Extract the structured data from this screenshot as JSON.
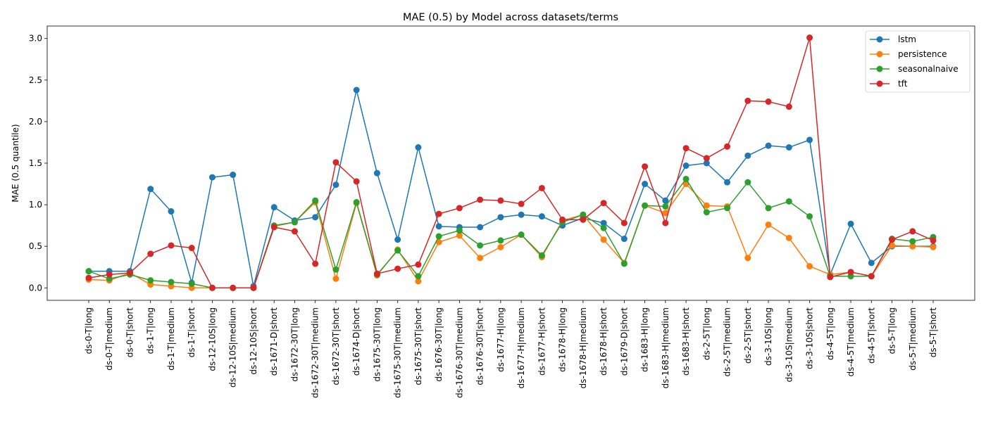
{
  "chart_data": {
    "type": "line",
    "title": "MAE (0.5) by Model across datasets/terms",
    "xlabel": "",
    "ylabel": "MAE (0.5 quantile)",
    "ylim": [
      -0.15,
      3.15
    ],
    "yticks": [
      "0.0",
      "0.5",
      "1.0",
      "1.5",
      "2.0",
      "2.5",
      "3.0"
    ],
    "grid": false,
    "legend_position": "top-right",
    "categories": [
      "ds-0-T|long",
      "ds-0-T|medium",
      "ds-0-T|short",
      "ds-1-T|long",
      "ds-1-T|medium",
      "ds-1-T|short",
      "ds-12-10S|long",
      "ds-12-10S|medium",
      "ds-12-10S|short",
      "ds-1671-D|short",
      "ds-1672-30T|long",
      "ds-1672-30T|medium",
      "ds-1672-30T|short",
      "ds-1674-D|short",
      "ds-1675-30T|long",
      "ds-1675-30T|medium",
      "ds-1675-30T|short",
      "ds-1676-30T|long",
      "ds-1676-30T|medium",
      "ds-1676-30T|short",
      "ds-1677-H|long",
      "ds-1677-H|medium",
      "ds-1677-H|short",
      "ds-1678-H|long",
      "ds-1678-H|medium",
      "ds-1678-H|short",
      "ds-1679-D|short",
      "ds-1683-H|long",
      "ds-1683-H|medium",
      "ds-1683-H|short",
      "ds-2-5T|long",
      "ds-2-5T|medium",
      "ds-2-5T|short",
      "ds-3-10S|long",
      "ds-3-10S|medium",
      "ds-3-10S|short",
      "ds-4-5T|long",
      "ds-4-5T|medium",
      "ds-4-5T|short",
      "ds-5-T|long",
      "ds-5-T|medium",
      "ds-5-T|short"
    ],
    "series": [
      {
        "name": "lstm",
        "color": "#1f77b4",
        "values": [
          0.2,
          0.2,
          0.2,
          1.19,
          0.92,
          0.06,
          1.33,
          1.36,
          0.02,
          0.97,
          0.81,
          0.85,
          1.24,
          2.38,
          1.38,
          0.58,
          1.69,
          0.74,
          0.73,
          0.73,
          0.85,
          0.88,
          0.86,
          0.75,
          0.84,
          0.78,
          0.59,
          1.25,
          1.05,
          1.47,
          1.5,
          1.27,
          1.59,
          1.71,
          1.69,
          1.78,
          0.16,
          0.77,
          0.3,
          0.5,
          0.5,
          0.5
        ]
      },
      {
        "name": "persistence",
        "color": "#ff7f0e",
        "values": [
          0.1,
          0.09,
          0.18,
          0.04,
          0.02,
          0.0,
          0.0,
          0.0,
          0.0,
          0.74,
          0.79,
          1.03,
          0.11,
          1.02,
          0.15,
          0.46,
          0.08,
          0.55,
          0.63,
          0.36,
          0.49,
          0.64,
          0.37,
          0.81,
          0.88,
          0.58,
          0.3,
          0.99,
          0.9,
          1.25,
          0.99,
          0.98,
          0.36,
          0.76,
          0.6,
          0.26,
          0.16,
          0.19,
          0.14,
          0.51,
          0.5,
          0.49
        ]
      },
      {
        "name": "seasonalnaive",
        "color": "#2ca02c",
        "values": [
          0.2,
          0.11,
          0.16,
          0.09,
          0.07,
          0.05,
          0.0,
          0.0,
          0.0,
          0.75,
          0.79,
          1.05,
          0.22,
          1.03,
          0.16,
          0.45,
          0.14,
          0.62,
          0.69,
          0.51,
          0.57,
          0.64,
          0.39,
          0.79,
          0.88,
          0.72,
          0.29,
          0.99,
          0.98,
          1.31,
          0.91,
          0.96,
          1.27,
          0.96,
          1.04,
          0.86,
          0.14,
          0.14,
          0.14,
          0.59,
          0.56,
          0.61
        ]
      },
      {
        "name": "tft",
        "color": "#d62728",
        "values": [
          0.12,
          0.16,
          0.18,
          0.41,
          0.51,
          0.48,
          0.0,
          0.0,
          0.0,
          0.73,
          0.68,
          0.29,
          1.51,
          1.28,
          0.17,
          0.23,
          0.28,
          0.89,
          0.96,
          1.06,
          1.05,
          1.01,
          1.2,
          0.82,
          0.82,
          1.02,
          0.78,
          1.46,
          0.78,
          1.68,
          1.56,
          1.7,
          2.25,
          2.24,
          2.18,
          3.01,
          0.13,
          0.19,
          0.14,
          0.58,
          0.68,
          0.57
        ]
      }
    ]
  }
}
